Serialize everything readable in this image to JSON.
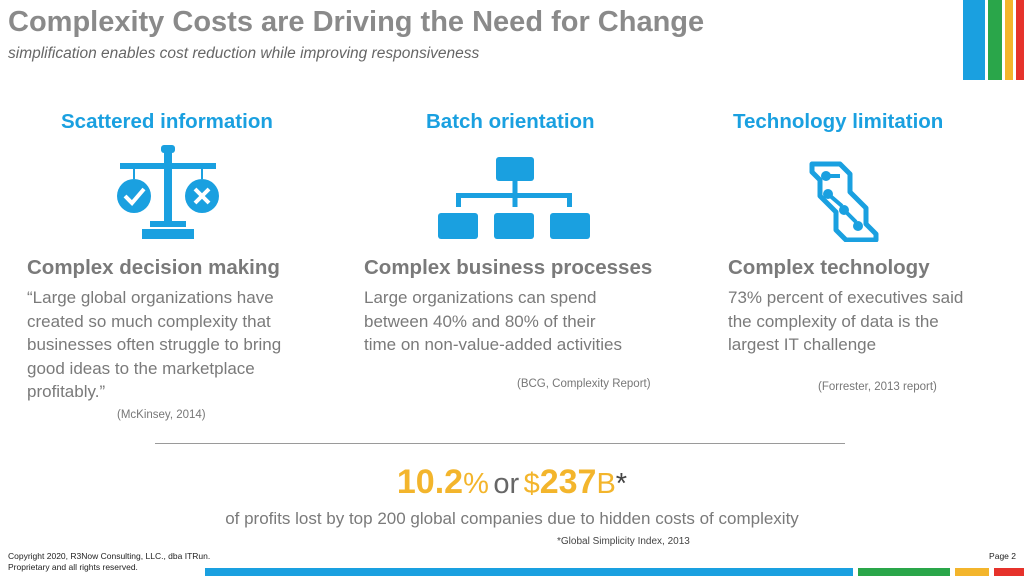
{
  "header": {
    "title": "Complexity Costs are Driving the Need for Change",
    "subtitle": "simplification enables cost reduction while improving responsiveness"
  },
  "accent_colors": {
    "blue": "#1aa0e0",
    "green": "#2aa64a",
    "yellow": "#f3b52c",
    "red": "#e6322b"
  },
  "columns": [
    {
      "heading": "Scattered information",
      "icon": "balance-scale-icon",
      "subheading": "Complex decision making",
      "lines": [
        "“Large global organizations have",
        "created so much complexity that",
        "businesses often struggle to bring",
        "good ideas to the marketplace",
        "profitably.”"
      ],
      "source": "(McKinsey, 2014)"
    },
    {
      "heading": "Batch orientation",
      "icon": "org-chart-icon",
      "subheading": "Complex business processes",
      "lines": [
        "Large organizations can spend",
        "between 40% and 80% of their",
        "time on non-value-added activities"
      ],
      "source": "(BCG, Complexity Report)"
    },
    {
      "heading": "Technology limitation",
      "icon": "circuit-chip-icon",
      "subheading": "Complex technology",
      "lines": [
        "73% percent of executives said",
        "the complexity of data is the",
        "largest IT challenge"
      ],
      "source": "(Forrester, 2013 report)"
    }
  ],
  "stat": {
    "pct_number": "10.2",
    "pct_sign": "%",
    "or": "or",
    "dollar_sign": "$",
    "amount": "237",
    "unit": "B",
    "asterisk": "*",
    "description": "of profits lost by top 200 global companies due to hidden costs of complexity",
    "source": "*Global Simplicity Index, 2013"
  },
  "footer": {
    "copyright_line1": "Copyright 2020, R3Now Consulting, LLC., dba ITRun.",
    "copyright_line2": "Proprietary and all rights reserved.",
    "page": "Page 2"
  }
}
